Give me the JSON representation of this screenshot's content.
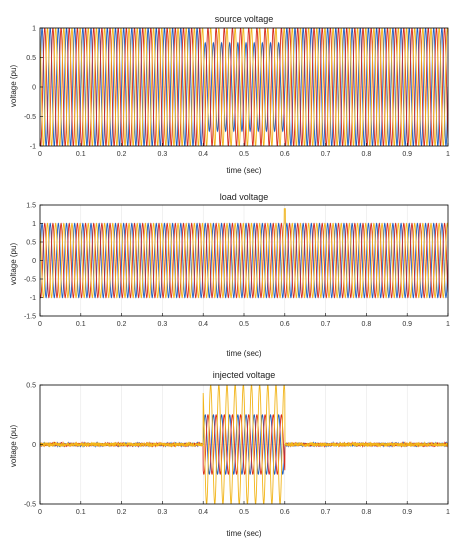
{
  "colors": {
    "phase_a": "#1f5fbf",
    "phase_b": "#d62b1e",
    "phase_c": "#f2b51a",
    "axis": "#000000",
    "grid": "#e3e3e3"
  },
  "chart_data": [
    {
      "type": "line",
      "title": "source voltage",
      "xlabel": "time (sec)",
      "ylabel": "voltage (pu)",
      "xlim": [
        0,
        1
      ],
      "ylim": [
        -1,
        1
      ],
      "xticks": [
        "0",
        "0.1",
        "0.2",
        "0.3",
        "0.4",
        "0.5",
        "0.6",
        "0.7",
        "0.8",
        "0.9",
        "1"
      ],
      "yticks": [
        "-1",
        "-0.5",
        "0",
        "0.5",
        "1"
      ],
      "yticks_values": [
        -1,
        -0.5,
        0,
        0.5,
        1
      ],
      "waveform": {
        "frequency_hz": 50,
        "phases_deg": [
          0,
          -120,
          120
        ],
        "amplitude_normal": [
          1,
          1,
          1
        ],
        "event_window": [
          0.4,
          0.6
        ],
        "amplitude_event": [
          0.75,
          1,
          1
        ]
      },
      "series": [
        {
          "values_desc": "phase voltage"
        },
        {
          "values_desc": "phase voltage"
        },
        {
          "values_desc": "phase voltage"
        }
      ]
    },
    {
      "type": "line",
      "title": "load voltage",
      "xlabel": "time (sec)",
      "ylabel": "voltage (pu)",
      "xlim": [
        0,
        1
      ],
      "ylim": [
        -1.5,
        1.5
      ],
      "xticks": [
        "0",
        "0.1",
        "0.2",
        "0.3",
        "0.4",
        "0.5",
        "0.6",
        "0.7",
        "0.8",
        "0.9",
        "1"
      ],
      "yticks": [
        "-1.5",
        "-1",
        "-0.5",
        "0",
        "0.5",
        "1",
        "1.5"
      ],
      "yticks_values": [
        -1.5,
        -1,
        -0.5,
        0,
        0.5,
        1,
        1.5
      ],
      "waveform": {
        "frequency_hz": 50,
        "phases_deg": [
          0,
          -120,
          120
        ],
        "amplitude_normal": [
          1,
          1,
          1
        ],
        "spike": {
          "time": 0.6,
          "value": 1.4
        }
      }
    },
    {
      "type": "line",
      "title": "injected voltage",
      "xlabel": "time (sec)",
      "ylabel": "voltage (pu)",
      "xlim": [
        0,
        1
      ],
      "ylim": [
        -0.5,
        0.5
      ],
      "xticks": [
        "0",
        "0.1",
        "0.2",
        "0.3",
        "0.4",
        "0.5",
        "0.6",
        "0.7",
        "0.8",
        "0.9",
        "1"
      ],
      "yticks": [
        "-0.5",
        "0",
        "0.5"
      ],
      "yticks_values": [
        -0.5,
        0,
        0.5
      ],
      "waveform": {
        "frequency_hz": 50,
        "event_window": [
          0.4,
          0.6
        ],
        "amplitude_event": [
          0.25,
          0.25,
          0.5
        ],
        "noise_amplitude": 0.015
      }
    }
  ]
}
